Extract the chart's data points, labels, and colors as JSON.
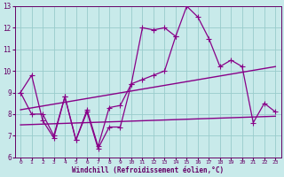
{
  "x": [
    0,
    1,
    2,
    3,
    4,
    5,
    6,
    7,
    8,
    9,
    10,
    11,
    12,
    13,
    14,
    15,
    16,
    17,
    18,
    19,
    20,
    21,
    22,
    23
  ],
  "line1": [
    9.0,
    9.8,
    7.7,
    6.9,
    8.8,
    6.8,
    8.1,
    6.4,
    7.4,
    7.4,
    9.4,
    12.0,
    11.9,
    12.0,
    11.6,
    13.0,
    12.5,
    11.5,
    10.2,
    10.5,
    10.2,
    7.6,
    8.5,
    8.1
  ],
  "line2": [
    9.0,
    8.0,
    8.0,
    7.0,
    8.8,
    6.8,
    8.2,
    6.5,
    8.3,
    8.4,
    9.4,
    9.6,
    9.8,
    10.0,
    11.6,
    null,
    null,
    null,
    null,
    null,
    null,
    null,
    null,
    null
  ],
  "trend1_x": [
    0,
    23
  ],
  "trend1_y": [
    8.2,
    10.2
  ],
  "trend2_x": [
    0,
    23
  ],
  "trend2_y": [
    7.5,
    7.9
  ],
  "xlim": [
    -0.5,
    23.5
  ],
  "ylim": [
    6,
    13
  ],
  "yticks": [
    6,
    7,
    8,
    9,
    10,
    11,
    12,
    13
  ],
  "xticks": [
    0,
    1,
    2,
    3,
    4,
    5,
    6,
    7,
    8,
    9,
    10,
    11,
    12,
    13,
    14,
    15,
    16,
    17,
    18,
    19,
    20,
    21,
    22,
    23
  ],
  "xlabel": "Windchill (Refroidissement éolien,°C)",
  "line_color": "#880088",
  "bg_color": "#c8eaea",
  "grid_color": "#99cccc",
  "text_color": "#660066",
  "marker": "+",
  "markersize": 4,
  "linewidth": 0.9
}
